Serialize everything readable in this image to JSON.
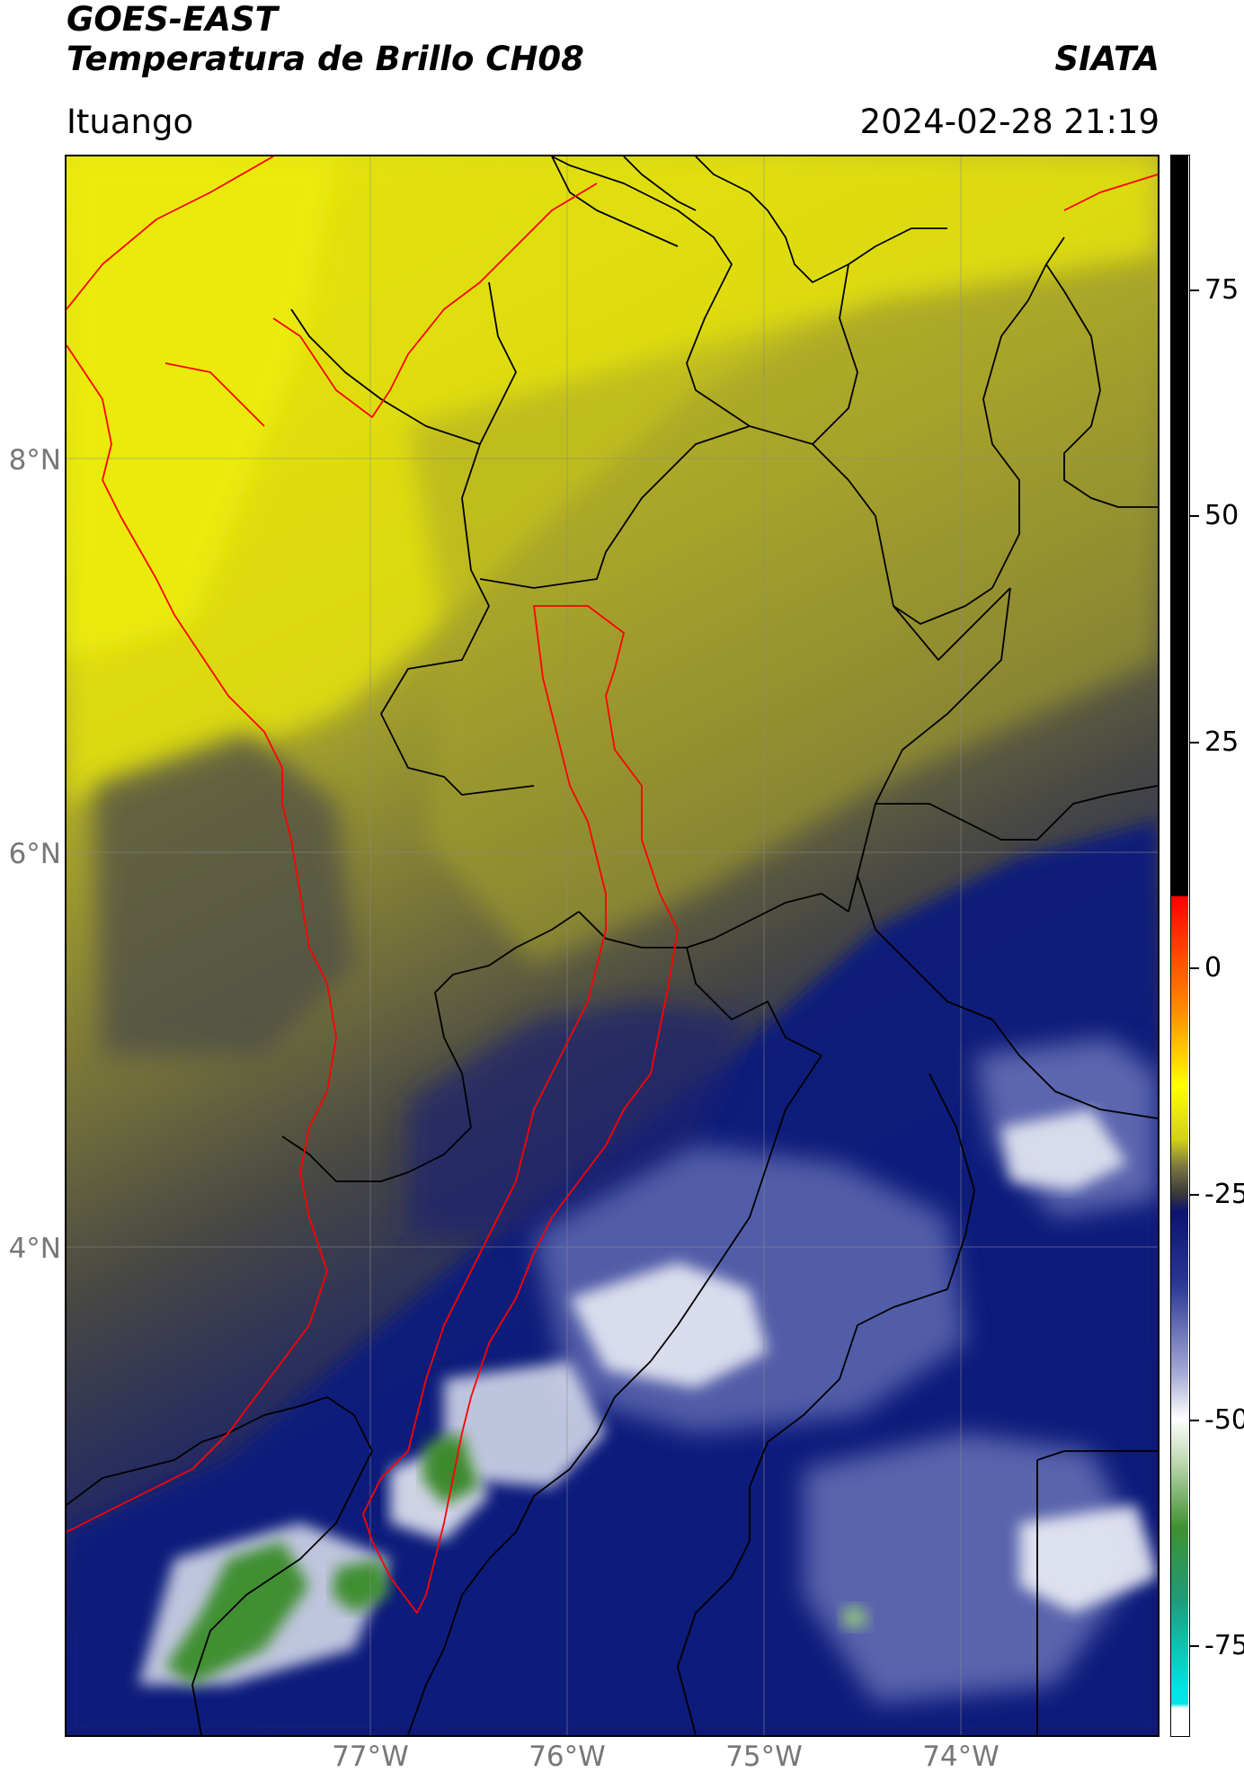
{
  "header": {
    "satellite": "GOES-EAST",
    "product": "Temperatura de Brillo CH08",
    "organization": "SIATA",
    "region": "Ituango",
    "datetime": "2024-02-28 21:19"
  },
  "map": {
    "latitude_labels": [
      "8°N",
      "6°N",
      "4°N"
    ],
    "longitude_labels": [
      "77°W",
      "76°W",
      "75°W",
      "74°W"
    ],
    "colors": {
      "warm_yellow": "#e6e60c",
      "olive": "#9f9c2c",
      "dark_gray": "#4c4c48",
      "navy": "#101b7e",
      "cloud_white": "#e4e6f2",
      "cold_green": "#3c8a2e",
      "basin_outline": "#ff0000",
      "boundary_outline": "#000000"
    }
  },
  "colorbar": {
    "tick_labels": [
      "75",
      "50",
      "25",
      "0",
      "-25",
      "-50",
      "-75"
    ],
    "stops": [
      {
        "value": 90,
        "color": "#000000"
      },
      {
        "value": 8,
        "color": "#000000"
      },
      {
        "value": 7.9,
        "color": "#ff0000"
      },
      {
        "value": -5,
        "color": "#ff9000"
      },
      {
        "value": -13,
        "color": "#ffff00"
      },
      {
        "value": -19,
        "color": "#d3d01a"
      },
      {
        "value": -22,
        "color": "#7a7741"
      },
      {
        "value": -25,
        "color": "#3a3a3a"
      },
      {
        "value": -27,
        "color": "#0c1470"
      },
      {
        "value": -35,
        "color": "#2a3794"
      },
      {
        "value": -45,
        "color": "#a6abd6"
      },
      {
        "value": -50,
        "color": "#ffffff"
      },
      {
        "value": -55,
        "color": "#b9d6ad"
      },
      {
        "value": -62,
        "color": "#3f9030"
      },
      {
        "value": -70,
        "color": "#1e9c78"
      },
      {
        "value": -80,
        "color": "#00e5e5"
      },
      {
        "value": -81.5,
        "color": "#00e5e5"
      },
      {
        "value": -82,
        "color": "#ffffff"
      },
      {
        "value": -85,
        "color": "#ffffff"
      }
    ]
  }
}
